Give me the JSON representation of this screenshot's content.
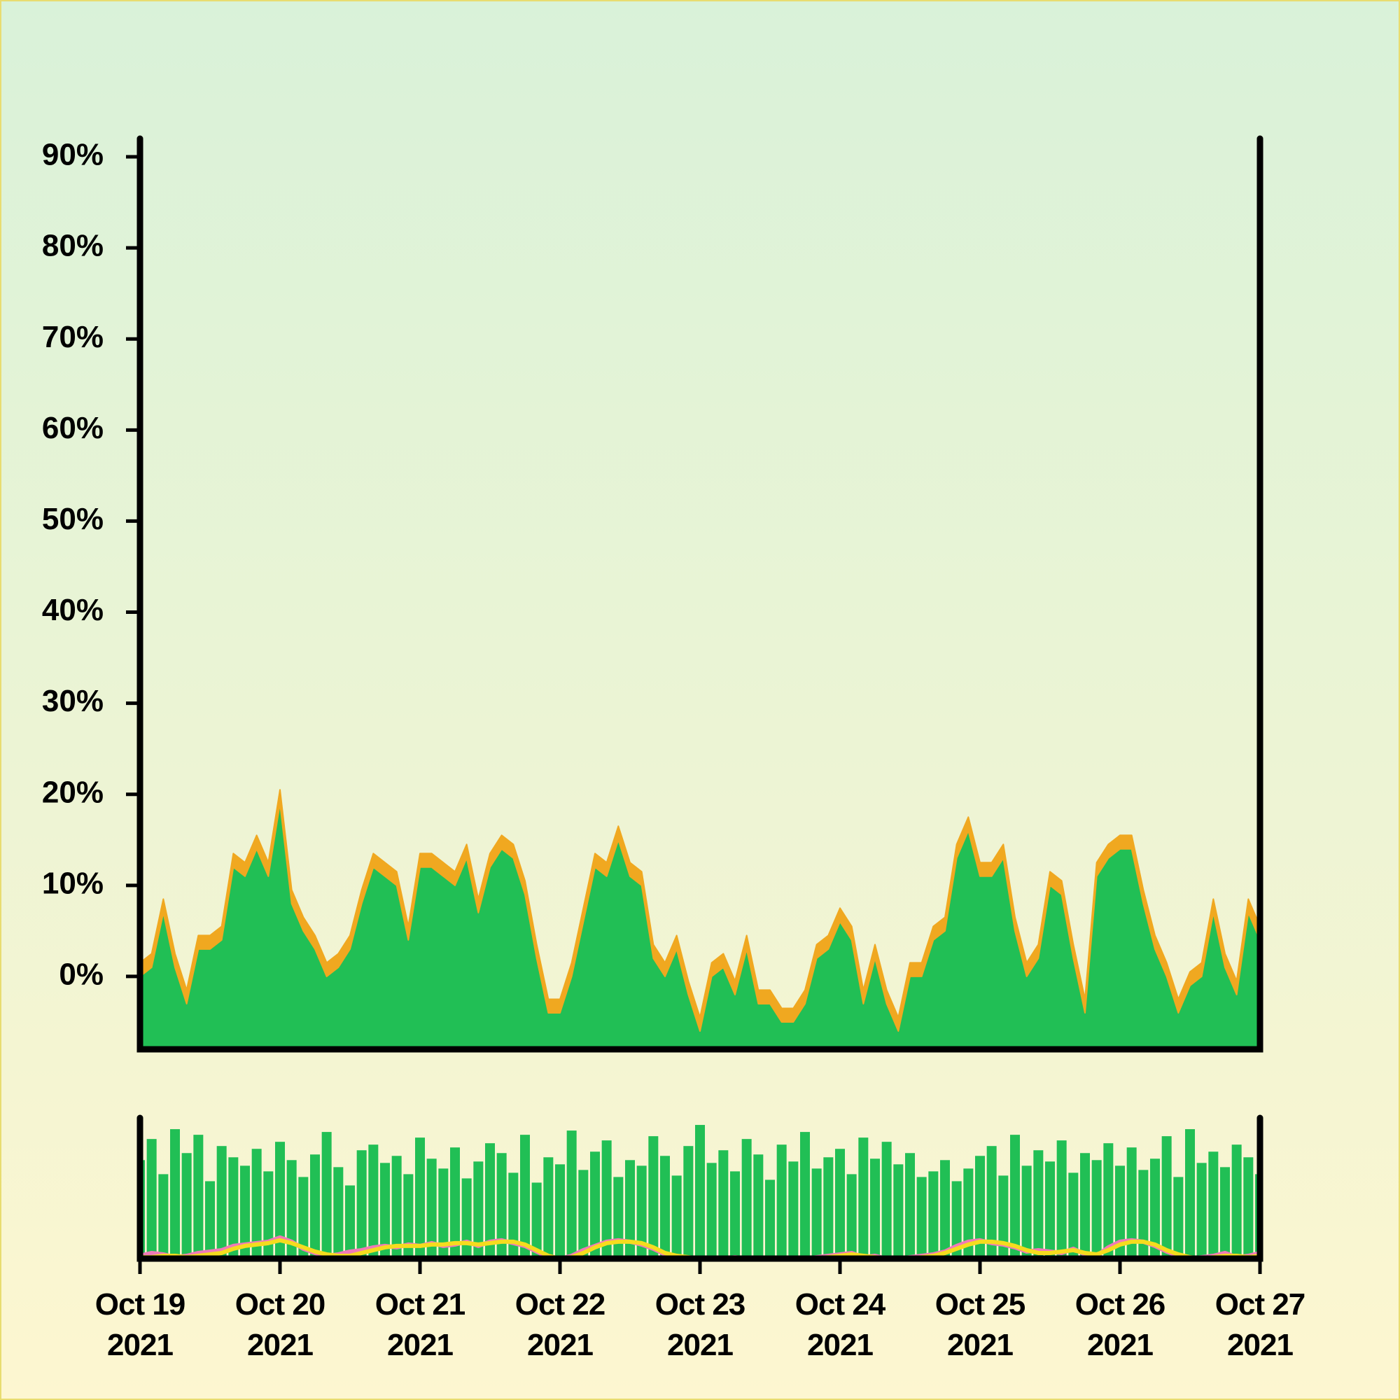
{
  "chart_data": [
    {
      "type": "area",
      "series": [
        {
          "color": "#21bf55",
          "values": [
            0,
            1,
            7,
            1,
            -3,
            3,
            3,
            4,
            12,
            11,
            14,
            11,
            19,
            8,
            5,
            3,
            0,
            1,
            3,
            8,
            12,
            11,
            10,
            4,
            12,
            12,
            11,
            10,
            13,
            7,
            12,
            14,
            13,
            9,
            2,
            -4,
            -4,
            0,
            6,
            12,
            11,
            15,
            11,
            10,
            2,
            0,
            3,
            -2,
            -6,
            0,
            1,
            -2,
            3,
            -3,
            -3,
            -5,
            -5,
            -3,
            2,
            3,
            6,
            4,
            -3,
            2,
            -3,
            -6,
            0,
            0,
            4,
            5,
            13,
            16,
            11,
            11,
            13,
            5,
            0,
            2,
            10,
            9,
            2,
            -4,
            11,
            13,
            14,
            14,
            8,
            3,
            0,
            -4,
            -1,
            0,
            7,
            1,
            -2,
            7,
            4
          ]
        },
        {
          "color": "#f0a820",
          "values": [
            1.5,
            1.5,
            1.5,
            1.5,
            1.5,
            1.5,
            1.5,
            1.5,
            1.5,
            1.5,
            1.5,
            1.5,
            1.5,
            1.5,
            1.5,
            1.5,
            1.5,
            1.5,
            1.5,
            1.5,
            1.5,
            1.5,
            1.5,
            1.5,
            1.5,
            1.5,
            1.5,
            1.5,
            1.5,
            1.5,
            1.5,
            1.5,
            1.5,
            1.5,
            1.5,
            1.5,
            1.5,
            1.5,
            1.5,
            1.5,
            1.5,
            1.5,
            1.5,
            1.5,
            1.5,
            1.5,
            1.5,
            1.5,
            1.5,
            1.5,
            1.5,
            1.5,
            1.5,
            1.5,
            1.5,
            1.5,
            1.5,
            1.5,
            1.5,
            1.5,
            1.5,
            1.5,
            1.5,
            1.5,
            1.5,
            1.5,
            1.5,
            1.5,
            1.5,
            1.5,
            1.5,
            1.5,
            1.5,
            1.5,
            1.5,
            1.5,
            1.5,
            1.5,
            1.5,
            1.5,
            1.5,
            1.5,
            1.5,
            1.5,
            1.5,
            1.5,
            1.5,
            1.5,
            1.5,
            1.5,
            1.5,
            1.5,
            1.5,
            1.5,
            1.5,
            1.5,
            1.5
          ]
        }
      ],
      "ylim": [
        -8,
        92
      ],
      "yticks": [
        {
          "value": 0,
          "label": "0%"
        },
        {
          "value": 10,
          "label": "10%"
        },
        {
          "value": 20,
          "label": "20%"
        },
        {
          "value": 30,
          "label": "30%"
        },
        {
          "value": 40,
          "label": "40%"
        },
        {
          "value": 50,
          "label": "50%"
        },
        {
          "value": 60,
          "label": "60%"
        },
        {
          "value": 70,
          "label": "70%"
        },
        {
          "value": 80,
          "label": "80%"
        },
        {
          "value": 90,
          "label": "90%"
        }
      ]
    },
    {
      "type": "bar",
      "categories": [
        "Oct 19\n2021",
        null,
        null,
        null,
        null,
        null,
        null,
        null,
        null,
        null,
        null,
        null,
        "Oct 20\n2021",
        null,
        null,
        null,
        null,
        null,
        null,
        null,
        null,
        null,
        null,
        null,
        "Oct 21\n2021",
        null,
        null,
        null,
        null,
        null,
        null,
        null,
        null,
        null,
        null,
        null,
        "Oct 22\n2021",
        null,
        null,
        null,
        null,
        null,
        null,
        null,
        null,
        null,
        null,
        null,
        "Oct 23\n2021",
        null,
        null,
        null,
        null,
        null,
        null,
        null,
        null,
        null,
        null,
        null,
        "Oct 24\n2021",
        null,
        null,
        null,
        null,
        null,
        null,
        null,
        null,
        null,
        null,
        null,
        "Oct 25\n2021",
        null,
        null,
        null,
        null,
        null,
        null,
        null,
        null,
        null,
        null,
        null,
        "Oct 26\n2021",
        null,
        null,
        null,
        null,
        null,
        null,
        null,
        null,
        null,
        null,
        null,
        "Oct 27\n2021"
      ],
      "series": [
        {
          "color": "#21bf55",
          "values": [
            70,
            85,
            60,
            92,
            75,
            88,
            55,
            80,
            72,
            66,
            78,
            62,
            83,
            70,
            58,
            74,
            90,
            65,
            52,
            77,
            81,
            68,
            73,
            60,
            86,
            71,
            64,
            79,
            57,
            69,
            82,
            75,
            61,
            88,
            54,
            72,
            67,
            91,
            63,
            76,
            84,
            58,
            70,
            66,
            87,
            73,
            59,
            80,
            95,
            68,
            77,
            62,
            85,
            74,
            56,
            81,
            69,
            90,
            64,
            72,
            78,
            60,
            86,
            71,
            83,
            67,
            75,
            58,
            62,
            70,
            55,
            64,
            73,
            80,
            59,
            88,
            66,
            77,
            69,
            84,
            61,
            75,
            70,
            82,
            66,
            79,
            63,
            71,
            87,
            58,
            92,
            68,
            76,
            65,
            81,
            72,
            60
          ]
        },
        {
          "type": "line",
          "color": "#f07ab8",
          "values": [
            2,
            4,
            3,
            1,
            2,
            4,
            5,
            6,
            9,
            10,
            11,
            12,
            15,
            12,
            7,
            4,
            2,
            3,
            5,
            6,
            8,
            9,
            8,
            10,
            9,
            11,
            9,
            10,
            12,
            9,
            12,
            13,
            11,
            9,
            5,
            1,
            0,
            2,
            6,
            9,
            12,
            13,
            12,
            10,
            7,
            3,
            1,
            0,
            0,
            0,
            0,
            1,
            0,
            0,
            0,
            0,
            0,
            0,
            1,
            2,
            3,
            4,
            1,
            2,
            0,
            0,
            1,
            2,
            3,
            5,
            9,
            12,
            13,
            11,
            10,
            8,
            5,
            6,
            5,
            4,
            7,
            3,
            2,
            8,
            12,
            13,
            12,
            9,
            5,
            2,
            0,
            1,
            2,
            4,
            1,
            2,
            4
          ]
        },
        {
          "type": "line",
          "color": "#f5dc1e",
          "values": [
            1,
            1,
            2,
            2,
            1,
            2,
            3,
            4,
            7,
            9,
            10,
            11,
            13,
            11,
            8,
            5,
            3,
            2,
            2,
            4,
            6,
            8,
            9,
            9,
            9,
            10,
            10,
            11,
            11,
            10,
            11,
            12,
            12,
            10,
            6,
            2,
            0,
            1,
            4,
            8,
            11,
            12,
            12,
            11,
            8,
            4,
            2,
            1,
            0,
            0,
            0,
            0,
            0,
            0,
            0,
            0,
            0,
            0,
            0,
            1,
            2,
            3,
            2,
            1,
            0,
            0,
            0,
            1,
            2,
            4,
            7,
            10,
            12,
            12,
            11,
            9,
            6,
            4,
            4,
            5,
            6,
            4,
            3,
            6,
            10,
            12,
            12,
            10,
            6,
            3,
            1,
            0,
            1,
            2,
            2,
            1,
            2
          ]
        }
      ],
      "ylim": [
        0,
        100
      ]
    }
  ]
}
